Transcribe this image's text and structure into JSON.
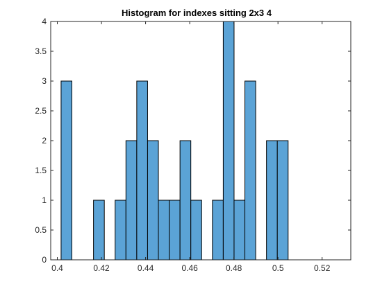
{
  "chart_data": {
    "type": "bar",
    "title": "Histogram for indexes sitting 2x3 4",
    "xlabel": "",
    "ylabel": "",
    "xlim": [
      0.397,
      0.533
    ],
    "ylim": [
      0,
      4
    ],
    "x_ticks": [
      0.4,
      0.42,
      0.44,
      0.46,
      0.48,
      0.5,
      0.52
    ],
    "x_tick_labels": [
      "0.4",
      "0.42",
      "0.44",
      "0.46",
      "0.48",
      "0.5",
      "0.52"
    ],
    "y_ticks": [
      0,
      0.5,
      1,
      1.5,
      2,
      2.5,
      3,
      3.5,
      4
    ],
    "y_tick_labels": [
      "0",
      "0.5",
      "1",
      "1.5",
      "2",
      "2.5",
      "3",
      "3.5",
      "4"
    ],
    "bin_width": 0.0049,
    "bins": [
      {
        "left": 0.4017,
        "count": 3
      },
      {
        "left": 0.4066,
        "count": 0
      },
      {
        "left": 0.4115,
        "count": 0
      },
      {
        "left": 0.4164,
        "count": 1
      },
      {
        "left": 0.4213,
        "count": 0
      },
      {
        "left": 0.4262,
        "count": 1
      },
      {
        "left": 0.4311,
        "count": 2
      },
      {
        "left": 0.436,
        "count": 3
      },
      {
        "left": 0.4409,
        "count": 2
      },
      {
        "left": 0.4458,
        "count": 1
      },
      {
        "left": 0.4507,
        "count": 1
      },
      {
        "left": 0.4556,
        "count": 2
      },
      {
        "left": 0.4605,
        "count": 1
      },
      {
        "left": 0.4654,
        "count": 0
      },
      {
        "left": 0.4703,
        "count": 1
      },
      {
        "left": 0.4752,
        "count": 4
      },
      {
        "left": 0.4801,
        "count": 1
      },
      {
        "left": 0.485,
        "count": 3
      },
      {
        "left": 0.4899,
        "count": 0
      },
      {
        "left": 0.4948,
        "count": 2
      },
      {
        "left": 0.4997,
        "count": 2
      }
    ],
    "bar_color": "#5ba3d6",
    "edge_color": "#000000",
    "grid": false,
    "legend": "none"
  }
}
